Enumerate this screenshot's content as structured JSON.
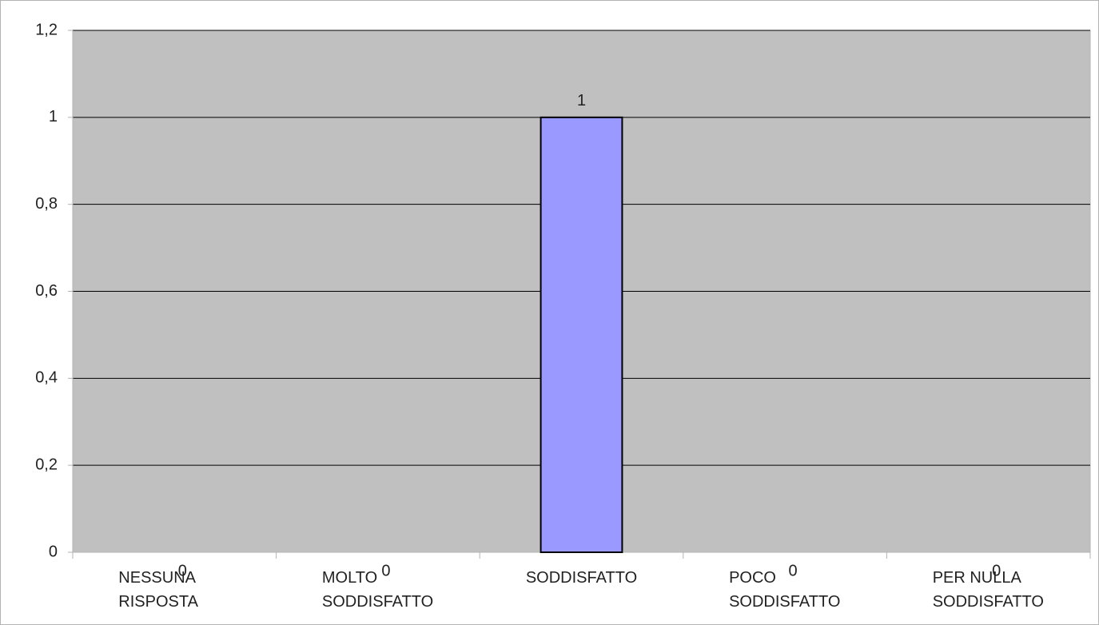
{
  "chart_data": {
    "type": "bar",
    "categories": [
      "NESSUNA RISPOSTA",
      "MOLTO SODDISFATTO",
      "SODDISFATTO",
      "POCO SODDISFATTO",
      "PER NULLA SODDISFATTO"
    ],
    "values": [
      0,
      0,
      1,
      0,
      0
    ],
    "color": "#9999ff",
    "ylim": [
      0,
      1.2
    ],
    "yticks": [
      0,
      {
        "value": 0.2,
        "label": "0,2"
      },
      {
        "value": 0.4,
        "label": "0,4"
      },
      {
        "value": 0.6,
        "label": "0,6"
      },
      {
        "value": 0.8,
        "label": "0,8"
      },
      1,
      {
        "value": 1.2,
        "label": "1,2"
      }
    ],
    "grid": true
  }
}
